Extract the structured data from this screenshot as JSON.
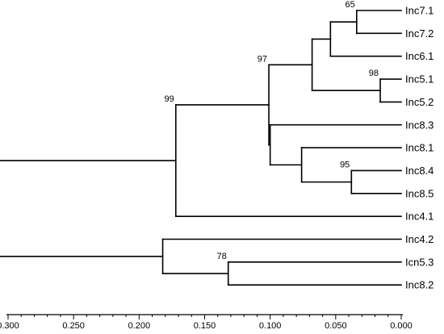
{
  "tree": {
    "leaves": [
      "Inc7.1",
      "Inc7.2",
      "Inc6.1",
      "Inc5.1",
      "Inc5.2",
      "Inc8.3",
      "Inc8.1",
      "Inc8.4",
      "Inc8.5",
      "Inc4.1",
      "Inc4.2",
      "Icn5.3",
      "Inc8.2"
    ],
    "nodes": [
      {
        "id": "n_71_72",
        "height": 0.034,
        "children": [
          "Inc7.1",
          "Inc7.2"
        ],
        "support": "65"
      },
      {
        "id": "n_7_6",
        "height": 0.054,
        "children": [
          "n_71_72",
          "Inc6.1"
        ],
        "support": ""
      },
      {
        "id": "n_51_52",
        "height": 0.016,
        "children": [
          "Inc5.1",
          "Inc5.2"
        ],
        "support": "98"
      },
      {
        "id": "n_765_5",
        "height": 0.068,
        "children": [
          "n_7_6",
          "n_51_52"
        ],
        "support": ""
      },
      {
        "id": "n_84_85",
        "height": 0.038,
        "children": [
          "Inc8.4",
          "Inc8.5"
        ],
        "support": "95"
      },
      {
        "id": "n_81_8485",
        "height": 0.076,
        "children": [
          "Inc8.1",
          "n_84_85"
        ],
        "support": ""
      },
      {
        "id": "n_83_81",
        "height": 0.1,
        "children": [
          "Inc8.3",
          "n_81_8485"
        ],
        "support": ""
      },
      {
        "id": "n_top",
        "height": 0.101,
        "children": [
          "n_765_5",
          "n_83_81"
        ],
        "support": "97"
      },
      {
        "id": "n_top_41",
        "height": 0.172,
        "children": [
          "n_top",
          "Inc4.1"
        ],
        "support": "99"
      },
      {
        "id": "n_53_82",
        "height": 0.132,
        "children": [
          "Icn5.3",
          "Inc8.2"
        ],
        "support": "78"
      },
      {
        "id": "n_42_rest",
        "height": 0.182,
        "children": [
          "Inc4.2",
          "n_53_82"
        ],
        "support": ""
      },
      {
        "id": "root",
        "height": 0.311,
        "children": [
          "n_top_41",
          "n_42_rest"
        ],
        "support": ""
      }
    ]
  },
  "axis": {
    "min": 0.0,
    "max": 0.3,
    "reversed": true,
    "ticks": [
      "0.300",
      "0.250",
      "0.200",
      "0.150",
      "0.100",
      "0.050",
      "0.000"
    ],
    "tick_values": [
      0.3,
      0.25,
      0.2,
      0.15,
      0.1,
      0.05,
      0.0
    ]
  }
}
